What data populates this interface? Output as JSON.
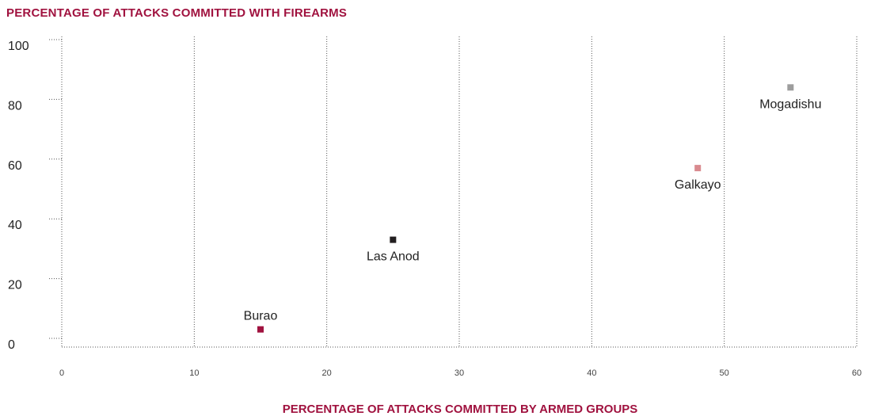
{
  "chart_data": {
    "type": "scatter",
    "title": "PERCENTAGE OF ATTACKS COMMITTED WITH FIREARMS",
    "xlabel": "PERCENTAGE OF ATTACKS COMMITTED BY ARMED GROUPS",
    "ylabel": "PERCENTAGE OF ATTACKS COMMITTED WITH FIREARMS",
    "xlim": [
      0,
      60
    ],
    "ylim": [
      0,
      100
    ],
    "xticks": [
      "0",
      "10",
      "20",
      "30",
      "40",
      "50",
      "60"
    ],
    "yticks": [
      "0",
      "20",
      "40",
      "60",
      "80",
      "100"
    ],
    "grid": "vertical dotted",
    "points": [
      {
        "label": "Burao",
        "x": 15,
        "y": 3,
        "color": "#a0123f",
        "label_pos": "above"
      },
      {
        "label": "Las Anod",
        "x": 25,
        "y": 33,
        "color": "#231f20",
        "label_pos": "below"
      },
      {
        "label": "Galkayo",
        "x": 48,
        "y": 57,
        "color": "#d98a8f",
        "label_pos": "below"
      },
      {
        "label": "Mogadishu",
        "x": 55,
        "y": 84,
        "color": "#9d9d9d",
        "label_pos": "below"
      }
    ]
  }
}
